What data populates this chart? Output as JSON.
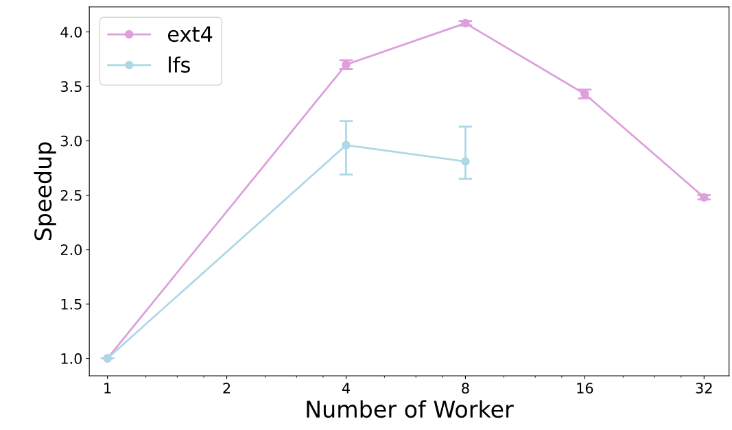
{
  "chart_data": {
    "type": "line",
    "xlabel": "Number of Worker",
    "ylabel": "Speedup",
    "x": [
      1,
      4,
      8,
      16,
      32
    ],
    "series": [
      {
        "name": "ext4",
        "color": "#dda0dd",
        "values": [
          1.0,
          3.7,
          4.08,
          3.43,
          2.48
        ],
        "errors": [
          null,
          0.04,
          0.02,
          0.04,
          0.02
        ]
      },
      {
        "name": "lfs",
        "color": "#add8e6",
        "values": [
          1.0,
          2.96,
          2.81,
          null,
          null
        ],
        "errors": [
          null,
          [
            2.69,
            3.18
          ],
          [
            2.65,
            3.13
          ],
          null,
          null
        ]
      }
    ],
    "log": "x",
    "xlim": [
      0.9,
      37
    ],
    "ylim": [
      0.84,
      4.23
    ],
    "xticks": [
      1,
      2,
      4,
      8,
      16,
      32
    ],
    "yticks": [
      {
        "value": 1.0,
        "label": "1.0"
      },
      {
        "value": 1.5,
        "label": "1.5"
      },
      {
        "value": 2.0,
        "label": "2.0"
      },
      {
        "value": 2.5,
        "label": "2.5"
      },
      {
        "value": 3.0,
        "label": "3.0"
      },
      {
        "value": 3.5,
        "label": "3.5"
      },
      {
        "value": 4.0,
        "label": "4.0"
      }
    ],
    "marker": "circle",
    "line_style": "solid",
    "legend": "top left",
    "grid": false
  }
}
